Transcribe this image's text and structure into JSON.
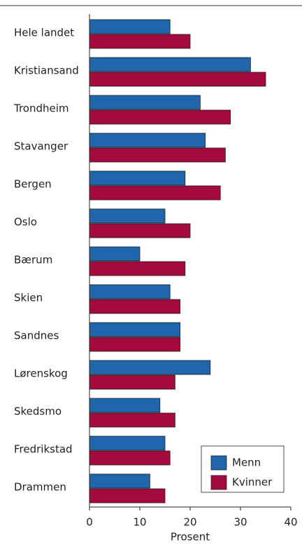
{
  "chart_data": {
    "type": "hbar",
    "categories": [
      "Hele landet",
      "Kristiansand",
      "Trondheim",
      "Stavanger",
      "Bergen",
      "Oslo",
      "Bærum",
      "Skien",
      "Sandnes",
      "Lørenskog",
      "Skedsmo",
      "Fredrikstad",
      "Drammen"
    ],
    "series": [
      {
        "name": "Menn",
        "color": "#1f66ad",
        "values": [
          16,
          32,
          22,
          23,
          19,
          15,
          10,
          16,
          18,
          24,
          14,
          15,
          12
        ]
      },
      {
        "name": "Kvinner",
        "color": "#a50a3f",
        "values": [
          20,
          35,
          28,
          27,
          26,
          20,
          19,
          18,
          18,
          17,
          17,
          16,
          15
        ]
      }
    ],
    "xlabel": "Prosent",
    "xlim": [
      0,
      40
    ],
    "xticks": [
      0,
      10,
      20,
      30,
      40
    ],
    "legend": "lower right",
    "grid": false
  }
}
